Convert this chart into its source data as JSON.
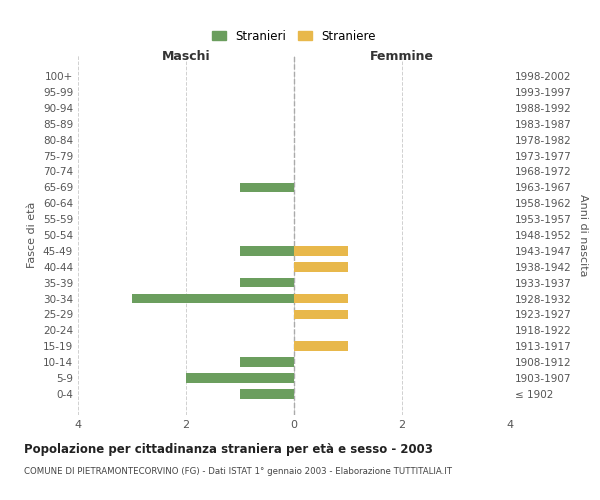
{
  "age_groups": [
    "100+",
    "95-99",
    "90-94",
    "85-89",
    "80-84",
    "75-79",
    "70-74",
    "65-69",
    "60-64",
    "55-59",
    "50-54",
    "45-49",
    "40-44",
    "35-39",
    "30-34",
    "25-29",
    "20-24",
    "15-19",
    "10-14",
    "5-9",
    "0-4"
  ],
  "birth_years": [
    "≤ 1902",
    "1903-1907",
    "1908-1912",
    "1913-1917",
    "1918-1922",
    "1923-1927",
    "1928-1932",
    "1933-1937",
    "1938-1942",
    "1943-1947",
    "1948-1952",
    "1953-1957",
    "1958-1962",
    "1963-1967",
    "1968-1972",
    "1973-1977",
    "1978-1982",
    "1983-1987",
    "1988-1992",
    "1993-1997",
    "1998-2002"
  ],
  "males": [
    0,
    0,
    0,
    0,
    0,
    0,
    0,
    1,
    0,
    0,
    0,
    1,
    0,
    1,
    3,
    0,
    0,
    0,
    1,
    2,
    1
  ],
  "females": [
    0,
    0,
    0,
    0,
    0,
    0,
    0,
    0,
    0,
    0,
    0,
    1,
    1,
    0,
    1,
    1,
    0,
    1,
    0,
    0,
    0
  ],
  "male_color": "#6b9e5e",
  "female_color": "#e8b84b",
  "title": "Popolazione per cittadinanza straniera per età e sesso - 2003",
  "subtitle": "COMUNE DI PIETRAMONTECORVINO (FG) - Dati ISTAT 1° gennaio 2003 - Elaborazione TUTTITALIA.IT",
  "ylabel_left": "Fasce di età",
  "ylabel_right": "Anni di nascita",
  "xlabel_maschi": "Maschi",
  "xlabel_femmine": "Femmine",
  "legend_male": "Stranieri",
  "legend_female": "Straniere",
  "xlim": 4,
  "background_color": "#ffffff",
  "grid_color": "#d0d0d0"
}
